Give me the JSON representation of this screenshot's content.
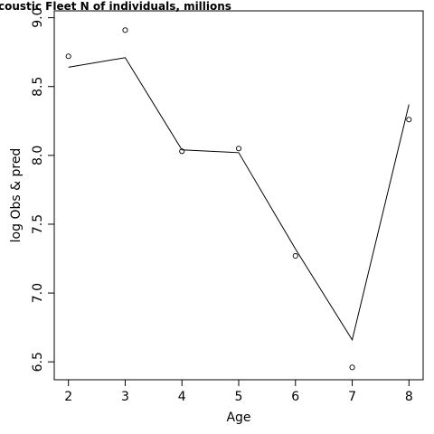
{
  "chart_data": {
    "type": "line",
    "title": "coustic Fleet   N of individuals, millions",
    "xlabel": "Age",
    "ylabel": "log Obs & pred",
    "x": [
      2,
      3,
      4,
      5,
      6,
      7,
      8
    ],
    "series": [
      {
        "kind": "observed-points",
        "values": [
          8.72,
          8.91,
          8.03,
          8.05,
          7.27,
          6.46,
          8.26
        ]
      },
      {
        "kind": "predicted-line",
        "values": [
          8.64,
          8.71,
          8.04,
          8.02,
          7.32,
          6.66,
          8.37
        ]
      }
    ],
    "xlim": [
      1.75,
      8.25
    ],
    "ylim": [
      6.37,
      9.05
    ],
    "xticks": [
      2,
      3,
      4,
      5,
      6,
      7,
      8
    ],
    "yticks": [
      6.5,
      7.0,
      7.5,
      8.0,
      8.5,
      9.0
    ],
    "xtick_labels": [
      "2",
      "3",
      "4",
      "5",
      "6",
      "7",
      "8"
    ],
    "ytick_labels": [
      "6.5",
      "7.0",
      "7.5",
      "8.0",
      "8.5",
      "9.0"
    ],
    "grid": false,
    "colors": {
      "line": "#000000",
      "points": "#000000",
      "frame": "#000000"
    }
  }
}
